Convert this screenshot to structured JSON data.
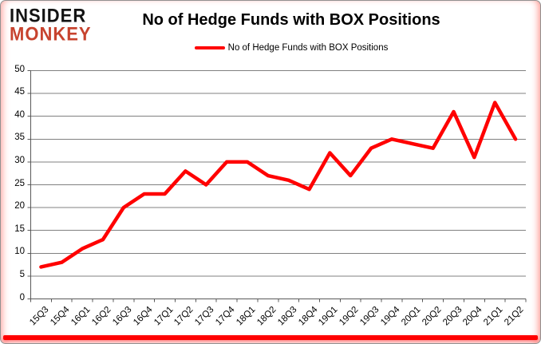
{
  "logo": {
    "line1": "INSIDER",
    "line2": "MONKEY",
    "line1_color": "#131313",
    "line2_color": "#c7432e"
  },
  "header": {
    "title": "No of Hedge Funds with BOX Positions"
  },
  "legend": {
    "label": "No of Hedge Funds with BOX Positions"
  },
  "chart_data": {
    "type": "line",
    "title": "No of Hedge Funds with BOX Positions",
    "categories": [
      "15Q3",
      "15Q4",
      "16Q1",
      "16Q2",
      "16Q3",
      "16Q4",
      "17Q1",
      "17Q2",
      "17Q3",
      "17Q4",
      "18Q1",
      "18Q2",
      "18Q3",
      "18Q4",
      "19Q1",
      "19Q2",
      "19Q3",
      "19Q4",
      "20Q1",
      "20Q2",
      "20Q3",
      "20Q4",
      "21Q1",
      "21Q2"
    ],
    "series": [
      {
        "name": "No of Hedge Funds with BOX Positions",
        "color": "#ff0000",
        "values": [
          7,
          8,
          11,
          13,
          20,
          23,
          23,
          28,
          25,
          30,
          30,
          27,
          26,
          24,
          32,
          27,
          33,
          35,
          34,
          33,
          41,
          31,
          43,
          35
        ]
      }
    ],
    "xlabel": "",
    "ylabel": "",
    "ylim": [
      0,
      50
    ],
    "y_ticks": [
      0,
      5,
      10,
      15,
      20,
      25,
      30,
      35,
      40,
      45,
      50
    ],
    "grid": true,
    "gridline_color": "#808080",
    "axis_color": "#595959",
    "legend_position": "top"
  },
  "frame": {
    "background": "#ffffff",
    "border_color": "#919191",
    "bottom_bar_color": "#ff0000"
  }
}
